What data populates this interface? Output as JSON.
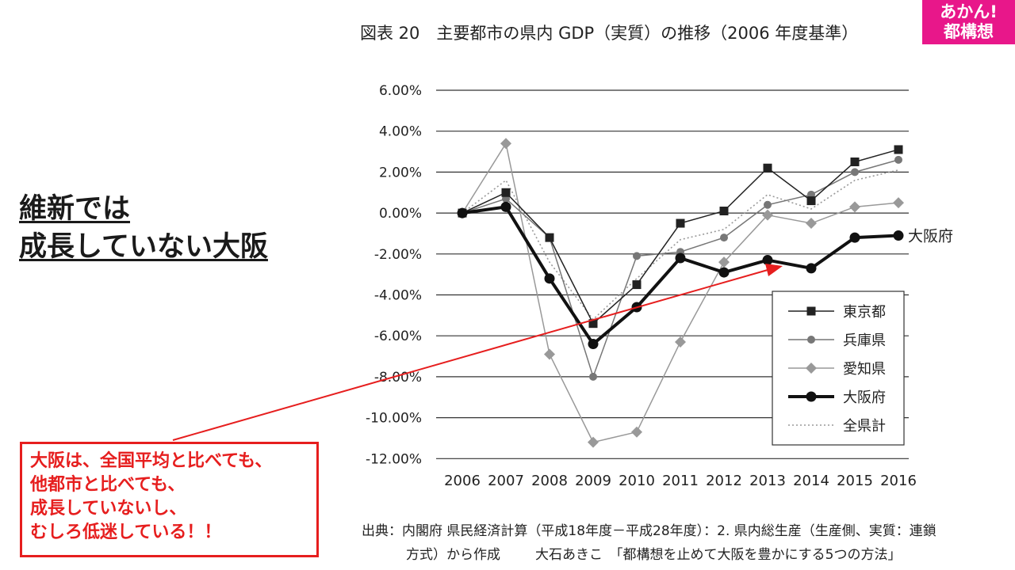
{
  "header": {
    "chart_title": "図表 20　主要都市の県内 GDP（実質）の推移（2006 年度基準）",
    "badge_line1": "あかん!",
    "badge_line2": "都構想",
    "badge_color": "#e8178a"
  },
  "headline": {
    "line1": "維新では",
    "line2": "成長していない大阪"
  },
  "callout": {
    "lines": [
      "大阪は、全国平均と比べても、",
      "他都市と比べても、",
      "成長していないし、",
      "むしろ低迷している！！"
    ],
    "color": "#e61e1e"
  },
  "source": {
    "line1": "出典：内閣府 県民経済計算（平成18年度－平成28年度）：2. 県内総生産（生産側、実質：連鎖",
    "line2": "方式）から作成",
    "line2_credit": "大石あきこ　「都構想を止めて大阪を豊かにする5つの方法」"
  },
  "chart_data": {
    "type": "line",
    "title": "図表 20　主要都市の県内 GDP（実質）の推移（2006 年度基準）",
    "x": [
      "2006",
      "2007",
      "2008",
      "2009",
      "2010",
      "2011",
      "2012",
      "2013",
      "2014",
      "2015",
      "2016"
    ],
    "y_ticks": [
      "6.00%",
      "4.00%",
      "2.00%",
      "0.00%",
      "-2.00%",
      "-4.00%",
      "-6.00%",
      "-8.00%",
      "-10.00%",
      "-12.00%"
    ],
    "ylim": [
      -12,
      6
    ],
    "grid": true,
    "legend_position": "bottom-right",
    "series": [
      {
        "name": "東京都",
        "marker": "square",
        "color": "#222222",
        "values": [
          0.0,
          1.0,
          -1.2,
          -5.4,
          -3.5,
          -0.5,
          0.1,
          2.2,
          0.6,
          2.5,
          3.1
        ]
      },
      {
        "name": "兵庫県",
        "marker": "circle",
        "color": "#777777",
        "values": [
          0.0,
          0.7,
          -1.2,
          -8.0,
          -2.1,
          -1.9,
          -1.2,
          0.4,
          0.9,
          2.0,
          2.6
        ]
      },
      {
        "name": "愛知県",
        "marker": "diamond",
        "color": "#999999",
        "values": [
          0.0,
          3.4,
          -6.9,
          -11.2,
          -10.7,
          -6.3,
          -2.4,
          -0.1,
          -0.5,
          0.3,
          0.5
        ]
      },
      {
        "name": "大阪府",
        "marker": "circle-bold",
        "color": "#111111",
        "values": [
          0.0,
          0.3,
          -3.2,
          -6.4,
          -4.6,
          -2.2,
          -2.9,
          -2.3,
          -2.7,
          -1.2,
          -1.1
        ]
      },
      {
        "name": "全県計",
        "marker": "none",
        "color": "#999999",
        "values": [
          0.0,
          1.6,
          -2.4,
          -5.2,
          -3.2,
          -1.3,
          -0.8,
          0.9,
          0.2,
          1.6,
          2.1
        ]
      }
    ],
    "annotation": "大阪府"
  }
}
